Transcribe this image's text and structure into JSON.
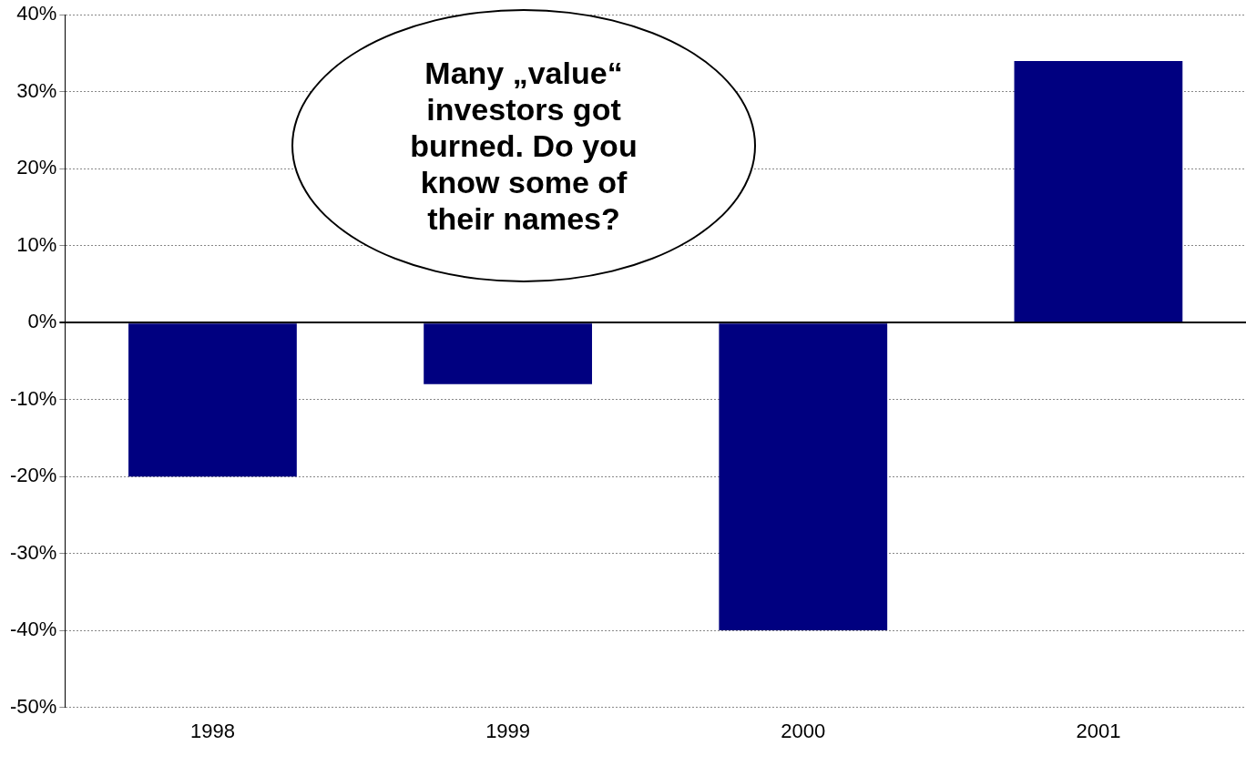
{
  "chart_data": {
    "type": "bar",
    "categories": [
      "1998",
      "1999",
      "2000",
      "2001"
    ],
    "values": [
      -20,
      -8,
      -40,
      34
    ],
    "color": "#000080",
    "ylim": [
      -50,
      40
    ],
    "yticks": [
      {
        "value": -50,
        "label": "-50%"
      },
      {
        "value": -40,
        "label": "-40%"
      },
      {
        "value": -30,
        "label": "-30%"
      },
      {
        "value": -20,
        "label": "-20%"
      },
      {
        "value": -10,
        "label": "-10%"
      },
      {
        "value": 0,
        "label": "0%"
      },
      {
        "value": 10,
        "label": "10%"
      },
      {
        "value": 20,
        "label": "20%"
      },
      {
        "value": 30,
        "label": "30%"
      },
      {
        "value": 40,
        "label": "40%"
      }
    ],
    "grid": "y",
    "legend": false,
    "annotations": [
      "Many „value“\ninvestors got\nburned. Do you\nknow some of\ntheir names?"
    ]
  }
}
